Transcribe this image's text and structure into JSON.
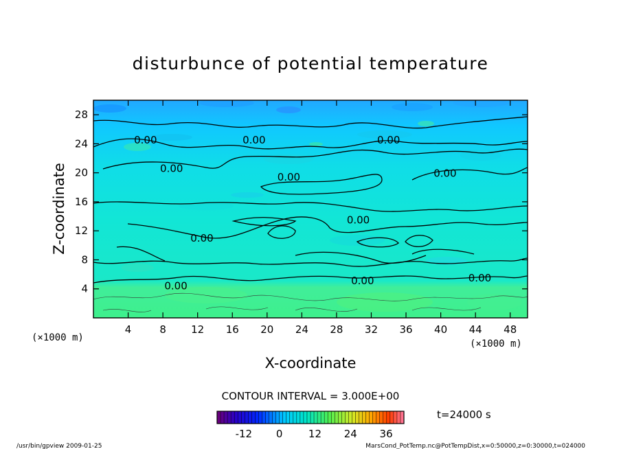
{
  "chart_data": {
    "type": "contour",
    "title": "disturbunce of potential temperature",
    "xlabel": "X-coordinate",
    "ylabel": "Z-coordinate",
    "x_unit": "(×1000 m)",
    "z_unit": "(×1000 m)",
    "xlim": [
      0,
      50
    ],
    "ylim": [
      0,
      30
    ],
    "x_ticks": [
      4,
      8,
      12,
      16,
      20,
      24,
      28,
      32,
      36,
      40,
      44,
      48
    ],
    "y_ticks": [
      4,
      8,
      12,
      16,
      20,
      24,
      28
    ],
    "contour_interval_label": "CONTOUR INTERVAL = 3.000E+00",
    "contour_labels": [
      {
        "value": "0.00",
        "x": 6.0,
        "z": 24.5
      },
      {
        "value": "0.00",
        "x": 18.5,
        "z": 24.5
      },
      {
        "value": "0.00",
        "x": 34.0,
        "z": 24.5
      },
      {
        "value": "0.00",
        "x": 9.0,
        "z": 20.6
      },
      {
        "value": "0.00",
        "x": 22.5,
        "z": 19.4
      },
      {
        "value": "0.00",
        "x": 40.5,
        "z": 19.9
      },
      {
        "value": "0.00",
        "x": 30.5,
        "z": 13.5
      },
      {
        "value": "0.00",
        "x": 12.5,
        "z": 11.0
      },
      {
        "value": "0.00",
        "x": 31.0,
        "z": 5.1
      },
      {
        "value": "0.00",
        "x": 44.5,
        "z": 5.5
      },
      {
        "value": "0.00",
        "x": 9.5,
        "z": 4.4
      }
    ],
    "colorbar": {
      "tick_labels": [
        "-12",
        "0",
        "12",
        "24",
        "36"
      ],
      "tick_values": [
        -12,
        0,
        12,
        24,
        36
      ],
      "range": [
        -21,
        42
      ]
    },
    "time_label": "t=24000 s"
  },
  "footer": {
    "left": "/usr/bin/gpview   2009-01-25",
    "right": "MarsCond_PotTemp.nc@PotTempDist,x=0:50000,z=0:30000,t=024000"
  }
}
